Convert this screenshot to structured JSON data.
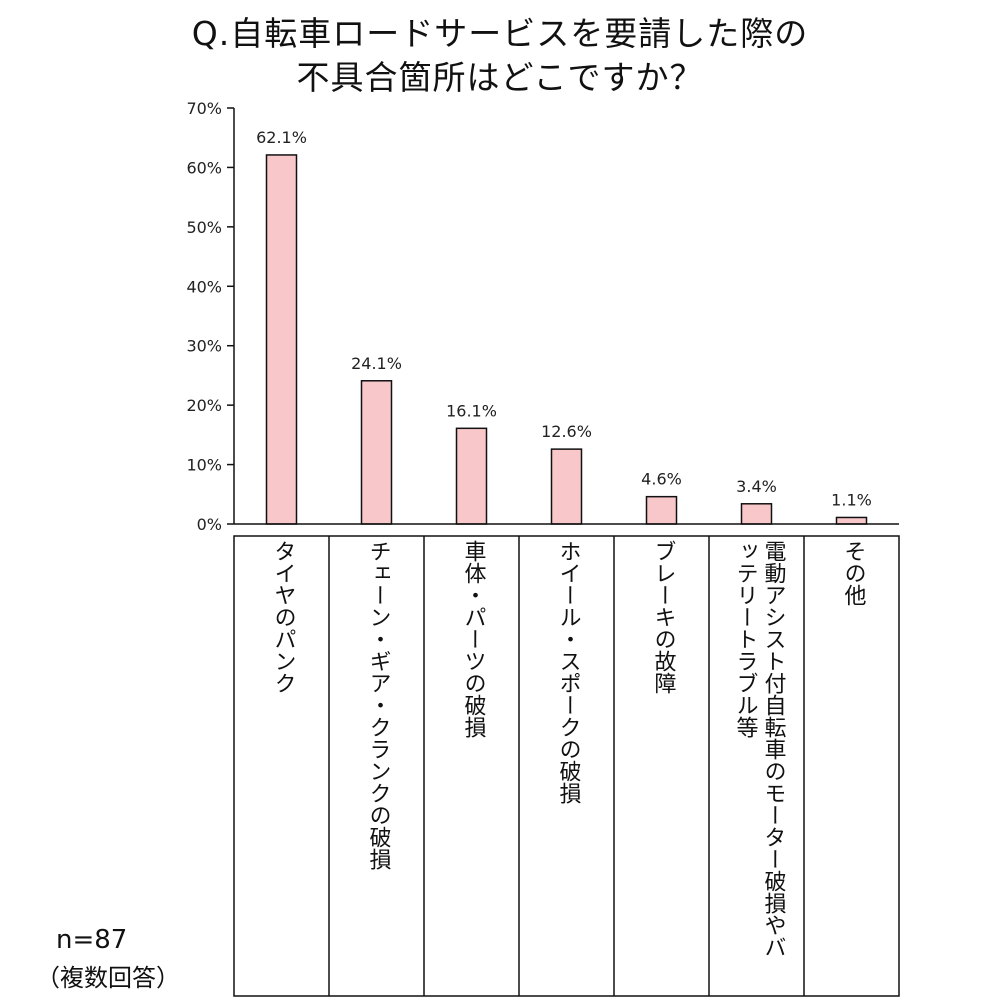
{
  "title_line1": "Q.自転車ロードサービスを要請した際の",
  "title_line2": "不具合箇所はどこですか？",
  "note_n": "n=87",
  "note_multi": "（複数回答）",
  "colors": {
    "bar_fill": "#f7c7c9",
    "bar_stroke": "#111111"
  },
  "chart_data": {
    "type": "bar",
    "title": "Q.自転車ロードサービスを要請した際の不具合箇所はどこですか？",
    "xlabel": "",
    "ylabel": "",
    "ylim": [
      0,
      70
    ],
    "yticks": [
      "0%",
      "10%",
      "20%",
      "30%",
      "40%",
      "50%",
      "60%",
      "70%"
    ],
    "grid": false,
    "categories": [
      "タイヤのパンク",
      "チェーン・ギア・クランクの破損",
      "車体・パーツの破損",
      "ホイール・スポークの破損",
      "ブレーキの故障",
      "電動アシスト付自転車のモーター破損やバッテリートラブル等",
      "その他"
    ],
    "values": [
      62.1,
      24.1,
      16.1,
      12.6,
      4.6,
      3.4,
      1.1
    ],
    "data_labels": [
      "62.1%",
      "24.1%",
      "16.1%",
      "12.6%",
      "4.6%",
      "3.4%",
      "1.1%"
    ]
  }
}
